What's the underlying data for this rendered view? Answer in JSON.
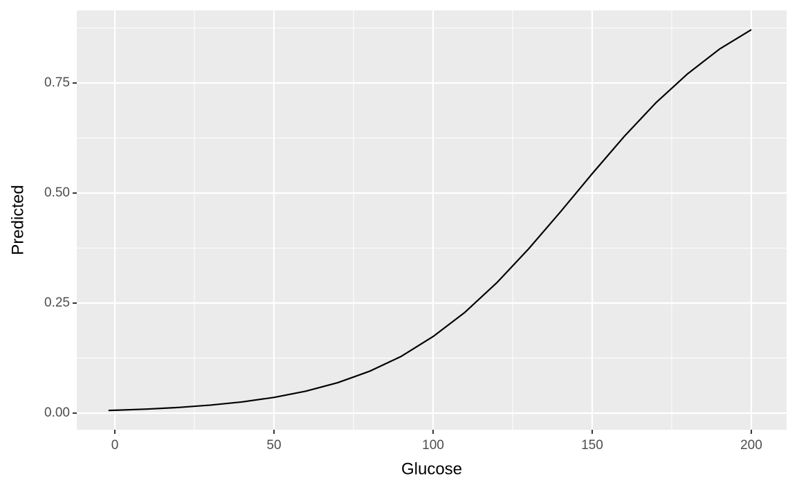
{
  "chart_data": {
    "type": "line",
    "x_label": "Glucose",
    "y_label": "Predicted",
    "x": [
      -2,
      0,
      10,
      20,
      30,
      40,
      50,
      60,
      70,
      80,
      90,
      100,
      110,
      120,
      130,
      140,
      150,
      160,
      170,
      180,
      190,
      200
    ],
    "series": [
      {
        "color": "#000000",
        "values": [
          0.0061,
          0.0065,
          0.0092,
          0.0129,
          0.0182,
          0.0255,
          0.0357,
          0.0498,
          0.0691,
          0.095,
          0.129,
          0.174,
          0.229,
          0.296,
          0.373,
          0.457,
          0.544,
          0.628,
          0.705,
          0.771,
          0.827,
          0.871
        ]
      }
    ],
    "xlim": [
      -11.96,
      211.1
    ],
    "ylim": [
      -0.0377,
      0.915
    ],
    "xticks": [
      0,
      50,
      100,
      150,
      200
    ],
    "yticks": [
      {
        "value": 0,
        "label": "0.00"
      },
      {
        "value": 0.25,
        "label": "0.25"
      },
      {
        "value": 0.5,
        "label": "0.50"
      },
      {
        "value": 0.75,
        "label": "0.75"
      }
    ],
    "grid": true,
    "panel_color": "#ebebeb"
  }
}
